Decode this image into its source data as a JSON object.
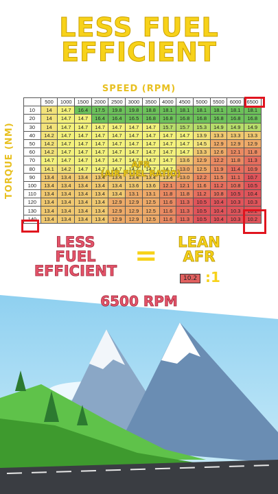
{
  "headline": {
    "line1": "LESS FUEL",
    "line2": "EFFICIENT"
  },
  "axis": {
    "speed": "SPEED (RPM)",
    "torque": "TORQUE (NM)"
  },
  "afr_overlay": {
    "line1": "AFR",
    "line2": "(AIR FUEL RATIO)"
  },
  "rpm": [
    "500",
    "1000",
    "1500",
    "2000",
    "2500",
    "3000",
    "3500",
    "4000",
    "4500",
    "5000",
    "5500",
    "6000",
    "6500"
  ],
  "torque": [
    "10",
    "20",
    "30",
    "40",
    "50",
    "60",
    "70",
    "80",
    "90",
    "100",
    "110",
    "120",
    "130",
    "140"
  ],
  "rows": [
    [
      "14",
      "14.7",
      "16.4",
      "17.5",
      "19.8",
      "19.8",
      "18.8",
      "18.1",
      "18.1",
      "18.1",
      "18.1",
      "18.1",
      "18.1"
    ],
    [
      "14",
      "14.7",
      "14.7",
      "16.4",
      "16.4",
      "16.5",
      "16.8",
      "16.8",
      "16.8",
      "16.8",
      "16.8",
      "16.8",
      "16.8"
    ],
    [
      "14",
      "14.7",
      "14.7",
      "14.7",
      "14.7",
      "14.7",
      "14.7",
      "15.7",
      "15.7",
      "15.3",
      "14.9",
      "14.9",
      "14.9"
    ],
    [
      "14.2",
      "14.7",
      "14.7",
      "14.7",
      "14.7",
      "14.7",
      "14.7",
      "14.7",
      "14.7",
      "13.9",
      "13.3",
      "13.3",
      "13.3"
    ],
    [
      "14.2",
      "14.7",
      "14.7",
      "14.7",
      "14.7",
      "14.7",
      "14.7",
      "14.7",
      "14.7",
      "14.5",
      "12.9",
      "12.9",
      "12.9"
    ],
    [
      "14.2",
      "14.7",
      "14.7",
      "14.7",
      "14.7",
      "14.7",
      "14.7",
      "14.7",
      "14.7",
      "13.3",
      "12.6",
      "12.1",
      "11.8"
    ],
    [
      "14.7",
      "14.7",
      "14.7",
      "14.7",
      "14.7",
      "14.7",
      "14.7",
      "14.7",
      "13.6",
      "12.9",
      "12.2",
      "11.8",
      "11.3"
    ],
    [
      "14.1",
      "14.2",
      "14.7",
      "14.7",
      "14.7",
      "14.7",
      "14.7",
      "14.7",
      "13.0",
      "12.5",
      "11.9",
      "11.4",
      "10.9"
    ],
    [
      "13.4",
      "13.4",
      "13.4",
      "13.4",
      "13.4",
      "13.4",
      "13.4",
      "13.4",
      "13.0",
      "12.2",
      "11.5",
      "11.1",
      "10.7"
    ],
    [
      "13.4",
      "13.4",
      "13.4",
      "13.4",
      "13.4",
      "13.6",
      "13.6",
      "12.1",
      "12.1",
      "11.6",
      "11.2",
      "10.8",
      "10.5"
    ],
    [
      "13.4",
      "13.4",
      "13.4",
      "13.4",
      "13.4",
      "13.1",
      "13.1",
      "11.8",
      "11.8",
      "11.2",
      "10.8",
      "10.5",
      "10.4"
    ],
    [
      "13.4",
      "13.4",
      "13.4",
      "13.4",
      "12.9",
      "12.9",
      "12.5",
      "11.6",
      "11.3",
      "10.5",
      "10.4",
      "10.3",
      "10.3"
    ],
    [
      "13.4",
      "13.4",
      "13.4",
      "13.4",
      "12.9",
      "12.9",
      "12.5",
      "11.6",
      "11.3",
      "10.5",
      "10.4",
      "10.3",
      "10.2"
    ],
    [
      "13.4",
      "13.4",
      "13.4",
      "13.4",
      "12.9",
      "12.9",
      "12.5",
      "11.6",
      "11.3",
      "10.5",
      "10.4",
      "10.3",
      "10.2"
    ]
  ],
  "equation": {
    "lhs": [
      "LESS",
      "FUEL",
      "EFFICIENT"
    ],
    "equals": "=",
    "rhs": [
      "LEAN",
      "AFR"
    ],
    "ratio_value": "10.2",
    "ratio_suffix": ":1"
  },
  "caption": "6500 RPM",
  "colors": {
    "green": "#4caf50",
    "yellow": "#f0f07a",
    "red": "#e0505a",
    "accent": "#f7d21a",
    "pink": "#e5546a"
  }
}
